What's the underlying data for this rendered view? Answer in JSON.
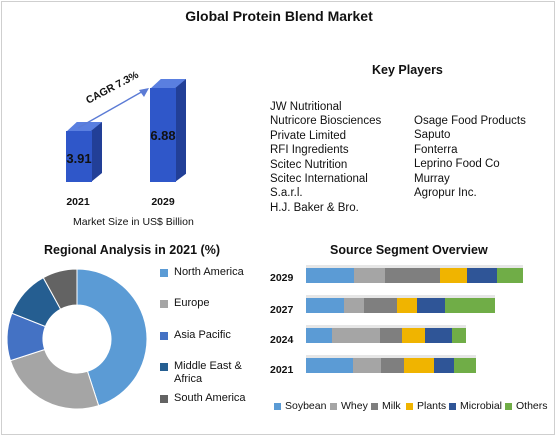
{
  "title": "Global Protein Blend Market",
  "market_size": {
    "bars": [
      {
        "year": "2021",
        "value": "3.91"
      },
      {
        "year": "2029",
        "value": "6.88"
      }
    ],
    "cagr_label": "CAGR 7.3%",
    "caption": "Market Size in US$ Billion"
  },
  "key_players": {
    "title": "Key Players",
    "col1": [
      "JW Nutritional",
      "Nutricore Biosciences",
      "Private Limited",
      "RFI Ingredients",
      "Scitec Nutrition",
      "Scitec International",
      "S.a.r.l.",
      "H.J. Baker & Bro."
    ],
    "col2": [
      "Osage Food Products",
      "Saputo",
      "Fonterra",
      "Leprino Food Co",
      "Murray",
      "Agropur Inc."
    ]
  },
  "chart_data": [
    {
      "type": "bar",
      "title": "",
      "categories": [
        "2021",
        "2029"
      ],
      "values": [
        3.91,
        6.88
      ],
      "xlabel": "Market Size in US$ Billion",
      "ylabel": "",
      "annotation": "CAGR 7.3%"
    },
    {
      "type": "pie",
      "title": "Regional Analysis in 2021 (%)",
      "labels": [
        "North America",
        "Europe",
        "Asia Pacific",
        "Middle East & Africa",
        "South America"
      ],
      "values": [
        45,
        25,
        11,
        11,
        8
      ],
      "colors": [
        "#5b9bd5",
        "#a5a5a5",
        "#4472c4",
        "#255e91",
        "#636363"
      ],
      "style": "donut",
      "legend": "right"
    },
    {
      "type": "bar",
      "orientation": "horizontal",
      "stacked": true,
      "title": "Source Segment Overview",
      "categories": [
        "2029",
        "2027",
        "2024",
        "2021"
      ],
      "series": [
        {
          "name": "Soybean",
          "color": "#5b9bd5",
          "values": [
            48,
            38,
            26,
            47
          ]
        },
        {
          "name": "Whey",
          "color": "#a5a5a5",
          "values": [
            31,
            20,
            48,
            28
          ]
        },
        {
          "name": "Milk",
          "color": "#7f7f7f",
          "values": [
            55,
            33,
            22,
            23
          ]
        },
        {
          "name": "Plants",
          "color": "#f0b400",
          "values": [
            27,
            20,
            23,
            30
          ]
        },
        {
          "name": "Microbial",
          "color": "#2f5597",
          "values": [
            30,
            28,
            27,
            20
          ]
        },
        {
          "name": "Others",
          "color": "#70ad47",
          "values": [
            26,
            50,
            14,
            22
          ]
        }
      ],
      "legend": "bottom"
    }
  ]
}
